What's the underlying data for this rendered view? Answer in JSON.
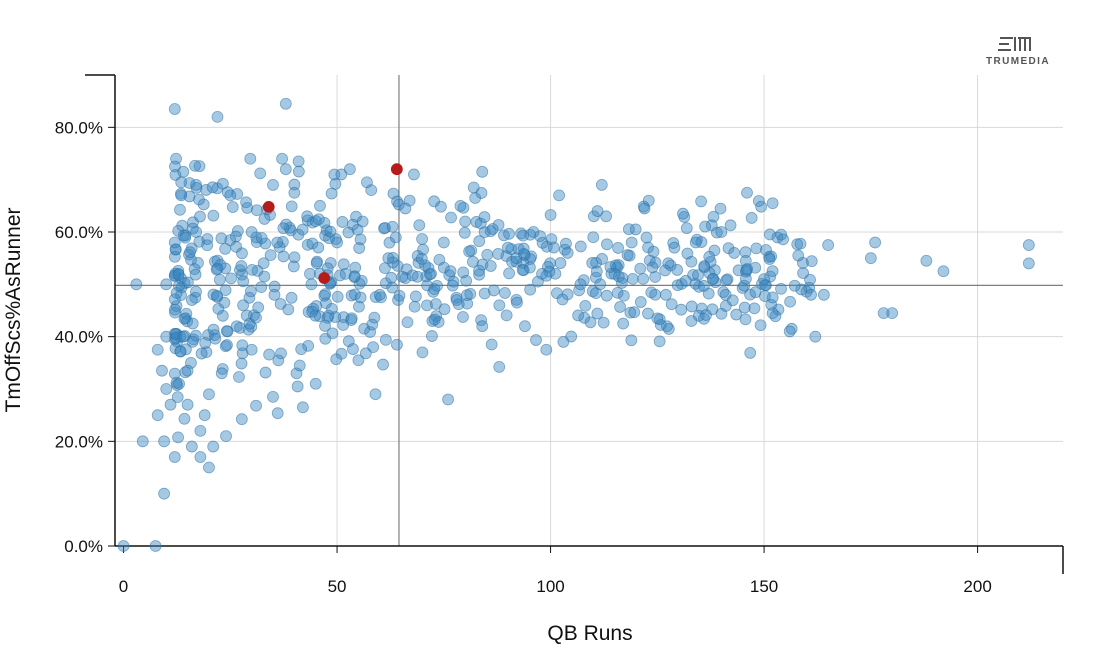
{
  "brand": {
    "name": "TRUMEDIA"
  },
  "colors": {
    "point_fill": "#3a87c0",
    "point_stroke": "#2c6fa3",
    "highlight": "#b71c1c",
    "grid": "#d9d9d9",
    "axis": "#111111",
    "reference_line": "#7f7f7f"
  },
  "chart_data": {
    "type": "scatter",
    "title": "",
    "xlabel": "QB Runs",
    "ylabel": "TmOffScs%AsRunner",
    "xlim": [
      -2,
      220
    ],
    "ylim": [
      0,
      90
    ],
    "x_ticks": [
      0,
      50,
      100,
      150,
      200
    ],
    "x_tick_labels": [
      "0",
      "50",
      "100",
      "150",
      "200"
    ],
    "y_ticks": [
      0,
      20,
      40,
      60,
      80
    ],
    "y_tick_labels": [
      "0.0%",
      "20.0%",
      "40.0%",
      "60.0%",
      "80.0%"
    ],
    "grid": true,
    "reference_lines": {
      "x": 64.5,
      "y": 49.8
    },
    "highlighted_points": [
      {
        "x": 34,
        "y": 64.8
      },
      {
        "x": 47,
        "y": 51.2
      },
      {
        "x": 64,
        "y": 72
      }
    ],
    "sample_points": [
      [
        0,
        0
      ],
      [
        7.5,
        0
      ],
      [
        3,
        50
      ],
      [
        4.5,
        20
      ],
      [
        8,
        25
      ],
      [
        8,
        37.5
      ],
      [
        9,
        33.5
      ],
      [
        9.5,
        10
      ],
      [
        9.5,
        20
      ],
      [
        10,
        30
      ],
      [
        10,
        40
      ],
      [
        10,
        50
      ],
      [
        11,
        27
      ],
      [
        12,
        17
      ],
      [
        12,
        83.5
      ],
      [
        12,
        58
      ],
      [
        13,
        31
      ],
      [
        13.5,
        67
      ],
      [
        13.5,
        69.5
      ],
      [
        14,
        71.5
      ],
      [
        14,
        40
      ],
      [
        15,
        27
      ],
      [
        15,
        33.5
      ],
      [
        16,
        19
      ],
      [
        16,
        47
      ],
      [
        17,
        69
      ],
      [
        17,
        60
      ],
      [
        18,
        22
      ],
      [
        18,
        17
      ],
      [
        19,
        25
      ],
      [
        20,
        15
      ],
      [
        20,
        29
      ],
      [
        21,
        19
      ],
      [
        22,
        82
      ],
      [
        22,
        53
      ],
      [
        23,
        33
      ],
      [
        24,
        21
      ],
      [
        25,
        67
      ],
      [
        28,
        46
      ],
      [
        30,
        37.5
      ],
      [
        30,
        60
      ],
      [
        32,
        71.2
      ],
      [
        33,
        62.5
      ],
      [
        35,
        28.5
      ],
      [
        35,
        69
      ],
      [
        36,
        58
      ],
      [
        38,
        84.5
      ],
      [
        38,
        72
      ],
      [
        40,
        67.5
      ],
      [
        41,
        73.5
      ],
      [
        42,
        26.5
      ],
      [
        43,
        63
      ],
      [
        44,
        50
      ],
      [
        45,
        31
      ],
      [
        46,
        65
      ],
      [
        48,
        44
      ],
      [
        50,
        58
      ],
      [
        51,
        71
      ],
      [
        52,
        52
      ],
      [
        53,
        72
      ],
      [
        55,
        35.5
      ],
      [
        56,
        62
      ],
      [
        57,
        69.5
      ],
      [
        58,
        68
      ],
      [
        59,
        29
      ],
      [
        60,
        48
      ],
      [
        62,
        55
      ],
      [
        63,
        61
      ],
      [
        66,
        64.5
      ],
      [
        67,
        66
      ],
      [
        68,
        71
      ],
      [
        70,
        37
      ],
      [
        72,
        52
      ],
      [
        75,
        58
      ],
      [
        76,
        28
      ],
      [
        78,
        47
      ],
      [
        80,
        62
      ],
      [
        82,
        68.5
      ],
      [
        84,
        71.5
      ],
      [
        84,
        42
      ],
      [
        86,
        53.5
      ],
      [
        88,
        46
      ],
      [
        90,
        57
      ],
      [
        92,
        55
      ],
      [
        94,
        42
      ],
      [
        96,
        60
      ],
      [
        98,
        52
      ],
      [
        99,
        37.5
      ],
      [
        102,
        67
      ],
      [
        103,
        39
      ],
      [
        104,
        56
      ],
      [
        107,
        50
      ],
      [
        110,
        59
      ],
      [
        111,
        64
      ],
      [
        112,
        69
      ],
      [
        113,
        63
      ],
      [
        115,
        52
      ],
      [
        117,
        42.5
      ],
      [
        119,
        58
      ],
      [
        121,
        53
      ],
      [
        122,
        64.5
      ],
      [
        123,
        66
      ],
      [
        125,
        43.5
      ],
      [
        127,
        48
      ],
      [
        129,
        57
      ],
      [
        131,
        63.5
      ],
      [
        133,
        43
      ],
      [
        134,
        58
      ],
      [
        136,
        53.5
      ],
      [
        138,
        51
      ],
      [
        140,
        60
      ],
      [
        141,
        48
      ],
      [
        143,
        56
      ],
      [
        146,
        67.5
      ],
      [
        148,
        48.5
      ],
      [
        150,
        51
      ],
      [
        152,
        44.5
      ],
      [
        152,
        65.5
      ],
      [
        154,
        59.5
      ],
      [
        156,
        41
      ],
      [
        158,
        55.5
      ],
      [
        161,
        48
      ],
      [
        162,
        40
      ],
      [
        164,
        48
      ],
      [
        165,
        57.5
      ],
      [
        175,
        55
      ],
      [
        176,
        58
      ],
      [
        178,
        44.5
      ],
      [
        180,
        44.5
      ],
      [
        188,
        54.5
      ],
      [
        192,
        52.5
      ],
      [
        212,
        57.5
      ],
      [
        212,
        54
      ]
    ]
  }
}
